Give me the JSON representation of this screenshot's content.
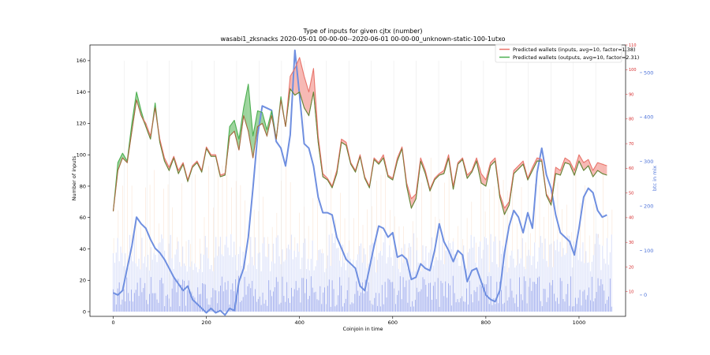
{
  "chart_data": {
    "type": "line",
    "title": "Type of inputs for given cjtx (number)",
    "subtitle": "wasabi1_zksnacks 2020-05-01 00-00-00--2020-06-01 00-00-00_unknown-static-100-1utxo",
    "xlabel": "Coinjoin in time",
    "ylabel": "Number of inputs",
    "ylabel_right": "btc in mix",
    "xlim": [
      -50,
      1100
    ],
    "ylim": [
      -3,
      170
    ],
    "right_red_ylim": [
      0,
      110
    ],
    "right_blue_ylim": [
      -48,
      562
    ],
    "x_ticks": [
      0,
      200,
      400,
      600,
      800,
      1000
    ],
    "y_ticks": [
      0,
      20,
      40,
      60,
      80,
      100,
      120,
      140,
      160
    ],
    "right_red_ticks": [
      10,
      20,
      30,
      40,
      50,
      60,
      70,
      80,
      90,
      100,
      110
    ],
    "right_blue_ticks": [
      0,
      100,
      200,
      300,
      400,
      500
    ],
    "legend_position": "upper right",
    "colors": {
      "inputs": "#e8746b",
      "outputs": "#4caf50",
      "btc": "#6f8fe0",
      "fill_red": "#f4a19b",
      "fill_green": "#7cc67c",
      "bg_bars": "#c7cff5"
    },
    "series": [
      {
        "name": "Predicted wallets (inputs, avg=10, factor=1.38)",
        "color": "#e8746b",
        "x": [
          0,
          10,
          20,
          30,
          40,
          50,
          60,
          70,
          80,
          90,
          100,
          110,
          120,
          130,
          140,
          150,
          160,
          170,
          180,
          190,
          200,
          210,
          220,
          230,
          240,
          250,
          260,
          270,
          280,
          290,
          300,
          310,
          320,
          330,
          340,
          350,
          360,
          370,
          380,
          390,
          400,
          410,
          420,
          430,
          440,
          450,
          460,
          470,
          480,
          490,
          500,
          510,
          520,
          530,
          540,
          550,
          560,
          570,
          580,
          590,
          600,
          610,
          620,
          630,
          640,
          650,
          660,
          670,
          680,
          690,
          700,
          710,
          720,
          730,
          740,
          750,
          760,
          770,
          780,
          790,
          800,
          810,
          820,
          830,
          840,
          850,
          860,
          870,
          880,
          890,
          900,
          910,
          920,
          930,
          940,
          950,
          960,
          970,
          980,
          990,
          1000,
          1010,
          1020,
          1030,
          1040,
          1050,
          1060
        ],
        "values": [
          64,
          90,
          98,
          95,
          115,
          135,
          125,
          120,
          112,
          130,
          110,
          98,
          92,
          99,
          90,
          95,
          84,
          93,
          96,
          90,
          105,
          100,
          100,
          87,
          88,
          112,
          115,
          103,
          125,
          115,
          98,
          118,
          120,
          112,
          125,
          110,
          135,
          118,
          150,
          155,
          162,
          150,
          140,
          155,
          112,
          88,
          85,
          80,
          90,
          110,
          108,
          95,
          90,
          100,
          86,
          80,
          98,
          95,
          100,
          87,
          85,
          98,
          105,
          82,
          72,
          75,
          98,
          90,
          78,
          85,
          88,
          90,
          100,
          80,
          95,
          98,
          87,
          90,
          98,
          88,
          84,
          95,
          98,
          75,
          66,
          70,
          90,
          93,
          96,
          85,
          92,
          98,
          97,
          75,
          70,
          92,
          90,
          98,
          96,
          90,
          100,
          95,
          97,
          90,
          95,
          94,
          93
        ]
      },
      {
        "name": "Predicted wallets (outputs, avg=10, factor=2.31)",
        "color": "#4caf50",
        "x": [
          0,
          10,
          20,
          30,
          40,
          50,
          60,
          70,
          80,
          90,
          100,
          110,
          120,
          130,
          140,
          150,
          160,
          170,
          180,
          190,
          200,
          210,
          220,
          230,
          240,
          250,
          260,
          270,
          280,
          290,
          300,
          310,
          320,
          330,
          340,
          350,
          360,
          370,
          380,
          390,
          400,
          410,
          420,
          430,
          440,
          450,
          460,
          470,
          480,
          490,
          500,
          510,
          520,
          530,
          540,
          550,
          560,
          570,
          580,
          590,
          600,
          610,
          620,
          630,
          640,
          650,
          660,
          670,
          680,
          690,
          700,
          710,
          720,
          730,
          740,
          750,
          760,
          770,
          780,
          790,
          800,
          810,
          820,
          830,
          840,
          850,
          860,
          870,
          880,
          890,
          900,
          910,
          920,
          930,
          940,
          950,
          960,
          970,
          980,
          990,
          1000,
          1010,
          1020,
          1030,
          1040,
          1050,
          1060
        ],
        "values": [
          64,
          95,
          101,
          96,
          120,
          140,
          128,
          118,
          110,
          133,
          108,
          96,
          90,
          98,
          88,
          94,
          83,
          92,
          95,
          89,
          104,
          99,
          99,
          86,
          87,
          118,
          122,
          110,
          130,
          145,
          112,
          128,
          127,
          116,
          128,
          110,
          137,
          118,
          142,
          138,
          140,
          130,
          125,
          140,
          108,
          86,
          84,
          79,
          88,
          108,
          106,
          94,
          89,
          99,
          85,
          79,
          97,
          94,
          98,
          86,
          84,
          96,
          104,
          80,
          66,
          72,
          96,
          88,
          77,
          84,
          87,
          88,
          98,
          78,
          94,
          97,
          85,
          89,
          96,
          82,
          80,
          93,
          96,
          73,
          62,
          68,
          88,
          91,
          94,
          84,
          90,
          96,
          96,
          74,
          68,
          88,
          87,
          95,
          94,
          87,
          96,
          90,
          93,
          86,
          90,
          88,
          87
        ]
      },
      {
        "name": "btc in mix",
        "color": "#6f8fe0",
        "axis": "right_blue",
        "x": [
          0,
          10,
          20,
          30,
          40,
          50,
          60,
          70,
          80,
          90,
          100,
          110,
          120,
          130,
          140,
          150,
          160,
          170,
          180,
          190,
          200,
          210,
          220,
          230,
          240,
          250,
          260,
          270,
          280,
          290,
          300,
          310,
          320,
          330,
          340,
          350,
          360,
          370,
          380,
          390,
          400,
          410,
          420,
          430,
          440,
          450,
          460,
          470,
          480,
          490,
          500,
          510,
          520,
          530,
          540,
          550,
          560,
          570,
          580,
          590,
          600,
          610,
          620,
          630,
          640,
          650,
          660,
          670,
          680,
          690,
          700,
          710,
          720,
          730,
          740,
          750,
          760,
          770,
          780,
          790,
          800,
          810,
          820,
          830,
          840,
          850,
          860,
          870,
          880,
          890,
          900,
          910,
          920,
          930,
          940,
          950,
          960,
          970,
          980,
          990,
          1000,
          1010,
          1020,
          1030,
          1040,
          1050,
          1060
        ],
        "values": [
          5,
          0,
          10,
          60,
          110,
          175,
          160,
          150,
          125,
          105,
          95,
          80,
          60,
          40,
          25,
          10,
          20,
          -10,
          -20,
          -30,
          -40,
          -30,
          -40,
          -35,
          -45,
          -30,
          -35,
          30,
          60,
          130,
          240,
          360,
          425,
          420,
          415,
          345,
          330,
          290,
          360,
          550,
          450,
          340,
          330,
          290,
          220,
          185,
          185,
          180,
          130,
          105,
          80,
          70,
          60,
          20,
          10,
          60,
          110,
          155,
          150,
          130,
          140,
          85,
          90,
          80,
          35,
          40,
          70,
          60,
          55,
          100,
          160,
          120,
          100,
          75,
          100,
          90,
          30,
          55,
          60,
          30,
          0,
          -10,
          -15,
          10,
          95,
          155,
          190,
          175,
          140,
          185,
          150,
          275,
          330,
          270,
          240,
          180,
          140,
          130,
          120,
          90,
          150,
          220,
          240,
          230,
          190,
          175,
          180
        ]
      }
    ]
  }
}
